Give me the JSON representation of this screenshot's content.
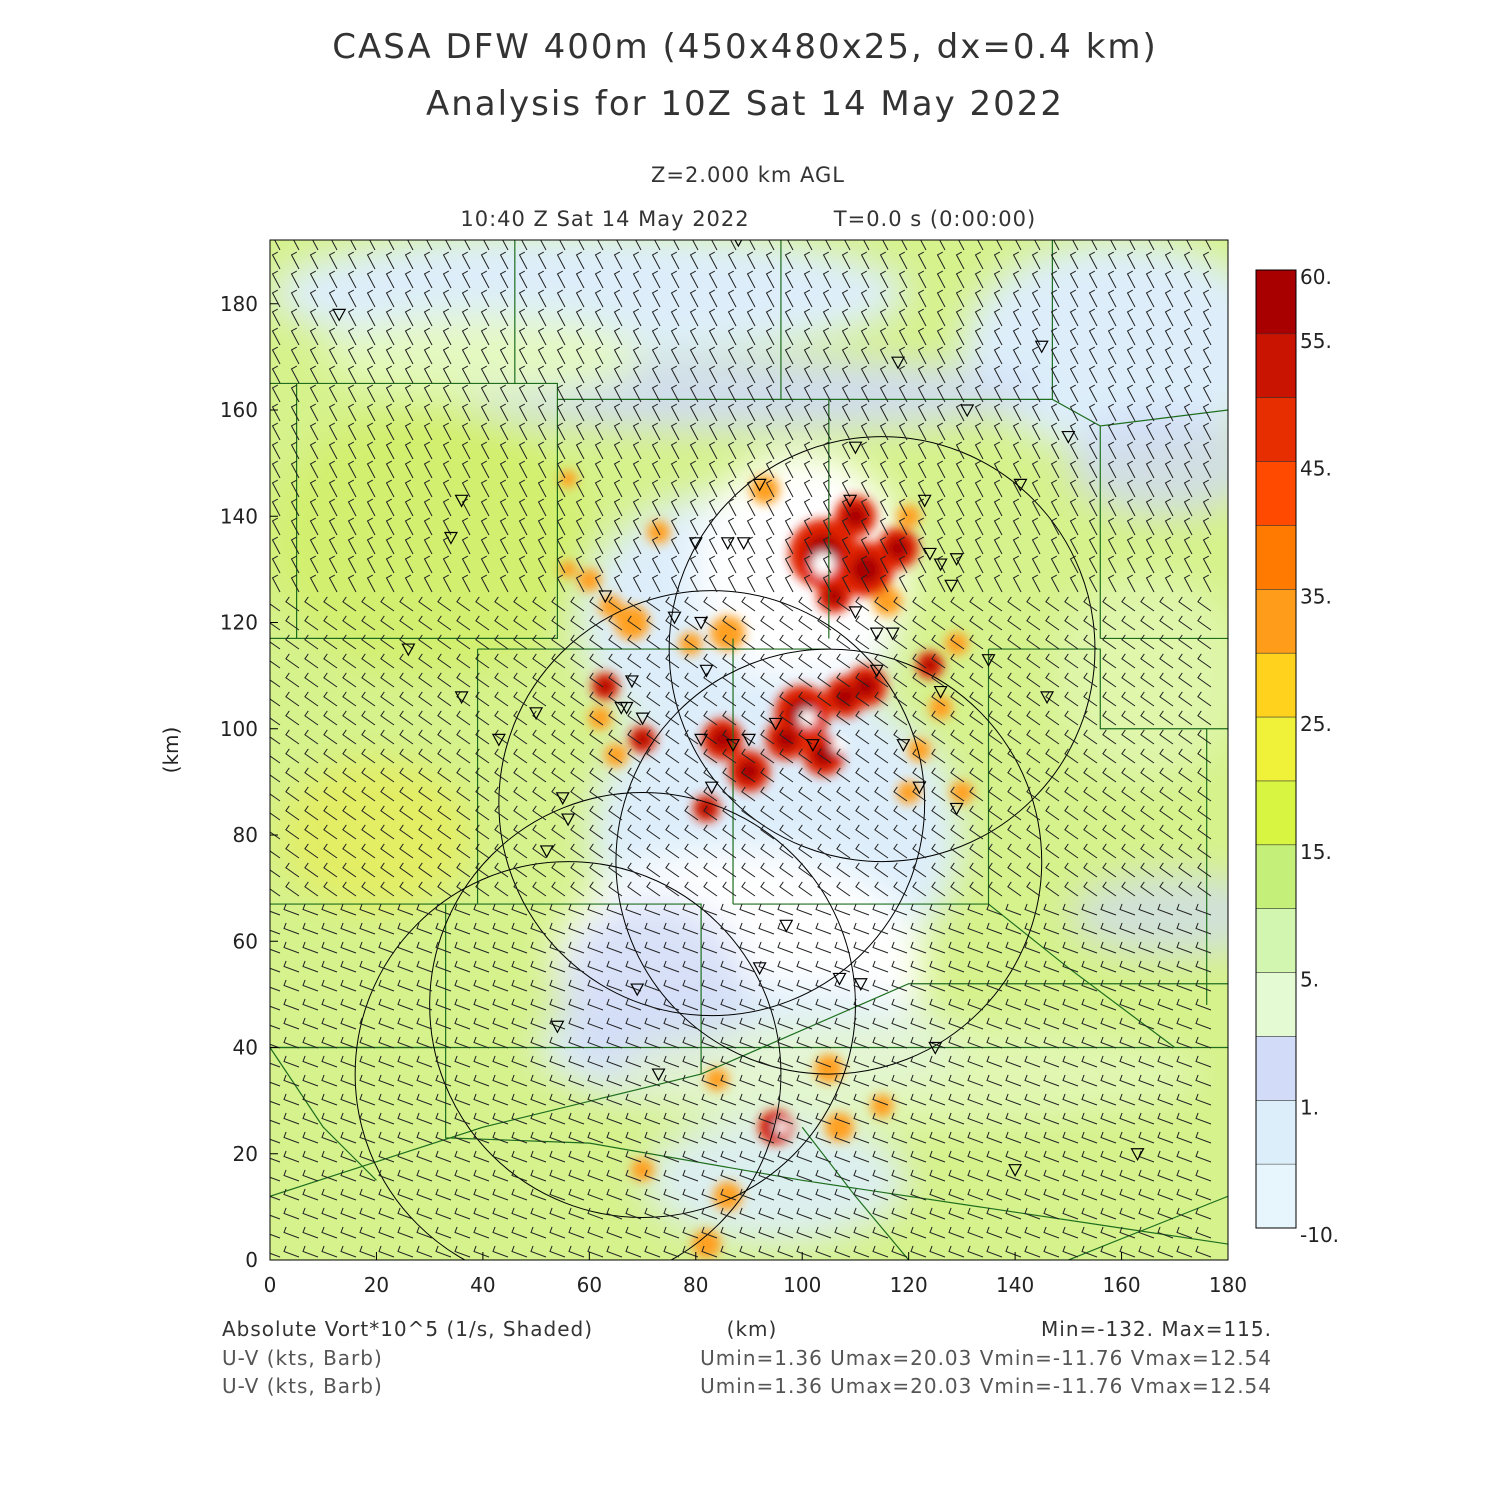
{
  "title_line1": "CASA DFW 400m (450x480x25, dx=0.4 km)",
  "title_line2": "Analysis for 10Z Sat 14 May 2022",
  "level_label": "Z=2.000 km AGL",
  "time_label": "10:40 Z Sat 14 May 2022",
  "forecast_label": "T=0.0 s (0:00:00)",
  "x_axis": {
    "label": "(km)",
    "range": [
      0,
      180
    ],
    "ticks": [
      "0",
      "20",
      "40",
      "60",
      "80",
      "100",
      "120",
      "140",
      "160",
      "180"
    ]
  },
  "y_axis": {
    "label": "(km)",
    "range": [
      0,
      192
    ],
    "ticks": [
      "0",
      "20",
      "40",
      "60",
      "80",
      "100",
      "120",
      "140",
      "160",
      "180"
    ]
  },
  "colorbar": {
    "tick_labels": [
      "60.",
      "55.",
      "45.",
      "35.",
      "25.",
      "15.",
      "5.",
      "1.",
      "-10."
    ],
    "colors": [
      "#a80000",
      "#c81400",
      "#e62e00",
      "#ff4a00",
      "#ff7a00",
      "#ff9d1a",
      "#ffd21e",
      "#f0f23a",
      "#d8f542",
      "#c4f07a",
      "#d2f5b0",
      "#e4fad2",
      "#d2dcf8",
      "#dceefa",
      "#e6f6fc"
    ]
  },
  "field_colors": {
    "background": "#d6f28c",
    "light_green": "#e4f8c0",
    "yellow_green": "#d2ee6a",
    "pale_blue": "#ddeefa",
    "lavender": "#cfdaf6",
    "white": "#ffffff",
    "orange": "#ffa020",
    "red": "#e02000",
    "dark_red": "#a80000"
  },
  "footer": {
    "field_label": "Absolute Vort*10^5 (1/s, Shaded)",
    "units_label": "(km)",
    "minmax": "Min=-132. Max=115.",
    "barb_label_1": "U-V (kts, Barb)",
    "barb_stats_1": "Umin=1.36 Umax=20.03 Vmin=-11.76 Vmax=12.54",
    "barb_label_2": "U-V (kts, Barb)",
    "barb_stats_2": "Umin=1.36 Umax=20.03 Vmin=-11.76 Vmax=12.54"
  }
}
